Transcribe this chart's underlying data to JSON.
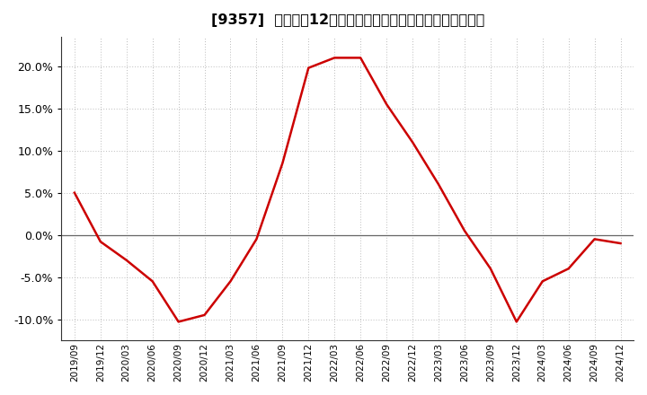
{
  "title": "[9357]  売上高の12か月移動合計の対前年同期増減率の推移",
  "line_color": "#cc0000",
  "bg_color": "#ffffff",
  "plot_bg_color": "#ffffff",
  "grid_color": "#bbbbbb",
  "zero_line_color": "#666666",
  "spine_color": "#333333",
  "ylim": [
    -0.125,
    0.235
  ],
  "yticks": [
    -0.1,
    -0.05,
    0.0,
    0.05,
    0.1,
    0.15,
    0.2
  ],
  "dates": [
    "2019/09",
    "2019/12",
    "2020/03",
    "2020/06",
    "2020/09",
    "2020/12",
    "2021/03",
    "2021/06",
    "2021/09",
    "2021/12",
    "2022/03",
    "2022/06",
    "2022/09",
    "2022/12",
    "2023/03",
    "2023/06",
    "2023/09",
    "2023/12",
    "2024/03",
    "2024/06",
    "2024/09",
    "2024/12"
  ],
  "values": [
    0.05,
    -0.008,
    -0.03,
    -0.055,
    -0.103,
    -0.095,
    -0.055,
    -0.005,
    0.085,
    0.198,
    0.21,
    0.21,
    0.155,
    0.11,
    0.06,
    0.005,
    -0.04,
    -0.103,
    -0.055,
    -0.04,
    -0.005,
    -0.01
  ],
  "xlabel_fontsize": 7.5,
  "ylabel_fontsize": 9,
  "title_fontsize": 11.5,
  "line_width": 1.8
}
